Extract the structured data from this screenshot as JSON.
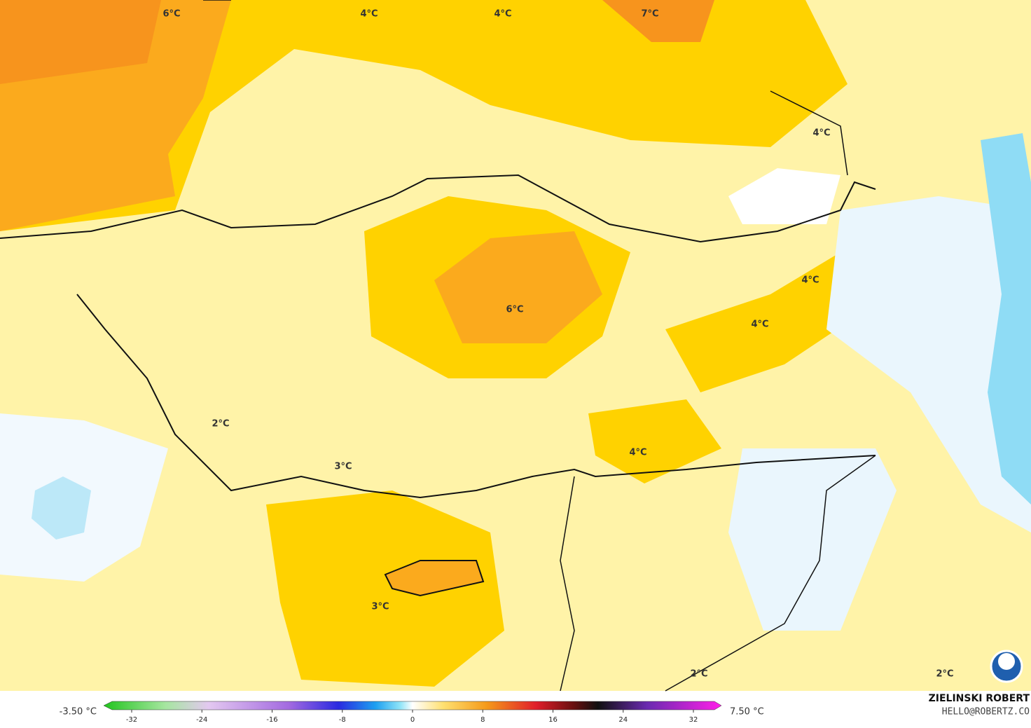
{
  "map": {
    "labels": [
      "6°C",
      "4°C",
      "4°C",
      "7°C",
      "4°C",
      "4°C",
      "6°C",
      "4°C",
      "2°C",
      "4°C",
      "3°C",
      "3°C",
      "2°C",
      "2°C"
    ]
  },
  "colorbar": {
    "min_label": "-3.50 °C",
    "max_label": "7.50 °C",
    "ticks": [
      -32,
      -24,
      -16,
      -8,
      0,
      8,
      16,
      24,
      32
    ]
  },
  "credit": {
    "author": "ZIELINSKI ROBERT",
    "email": "HELLO@ROBERTZ.CO"
  }
}
